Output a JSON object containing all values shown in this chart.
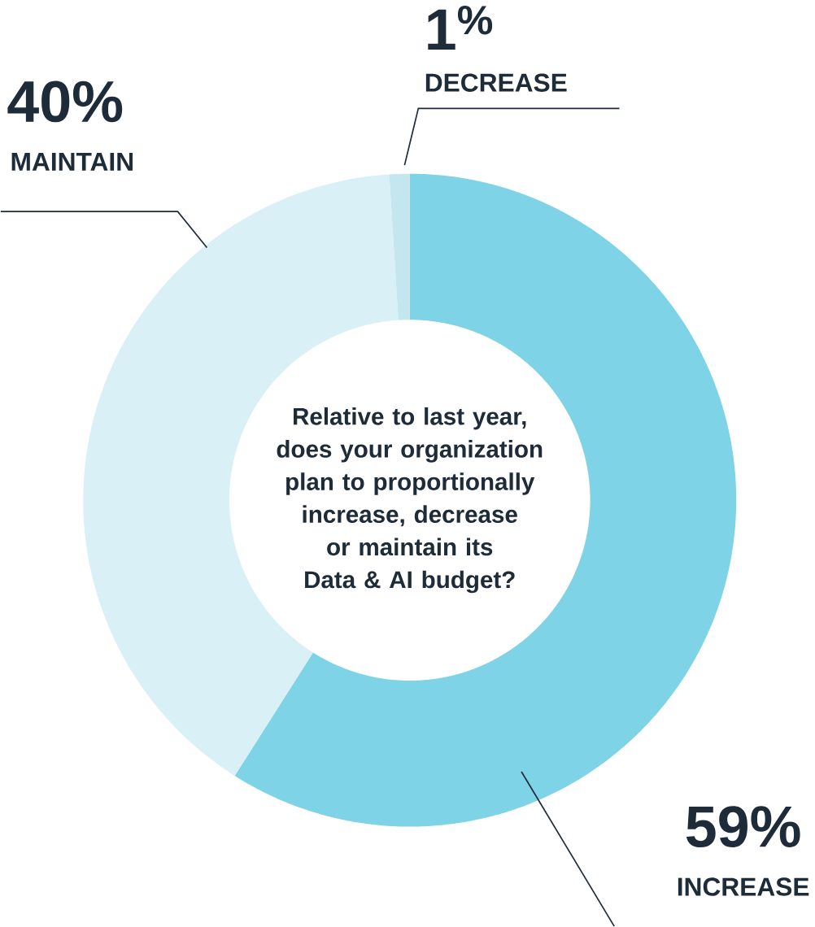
{
  "chart_data": {
    "type": "donut",
    "title": "Relative to last year, does your organization plan to proportionally increase, decrease or maintain its Data & AI budget?",
    "categories": [
      "INCREASE",
      "MAINTAIN",
      "DECREASE"
    ],
    "values": [
      59,
      40,
      1
    ],
    "colors": [
      "#7fd3e7",
      "#d9f0f6",
      "#c4e6ef"
    ],
    "value_labels": [
      "59%",
      "40%",
      "1$^{%}$"
    ]
  }
}
